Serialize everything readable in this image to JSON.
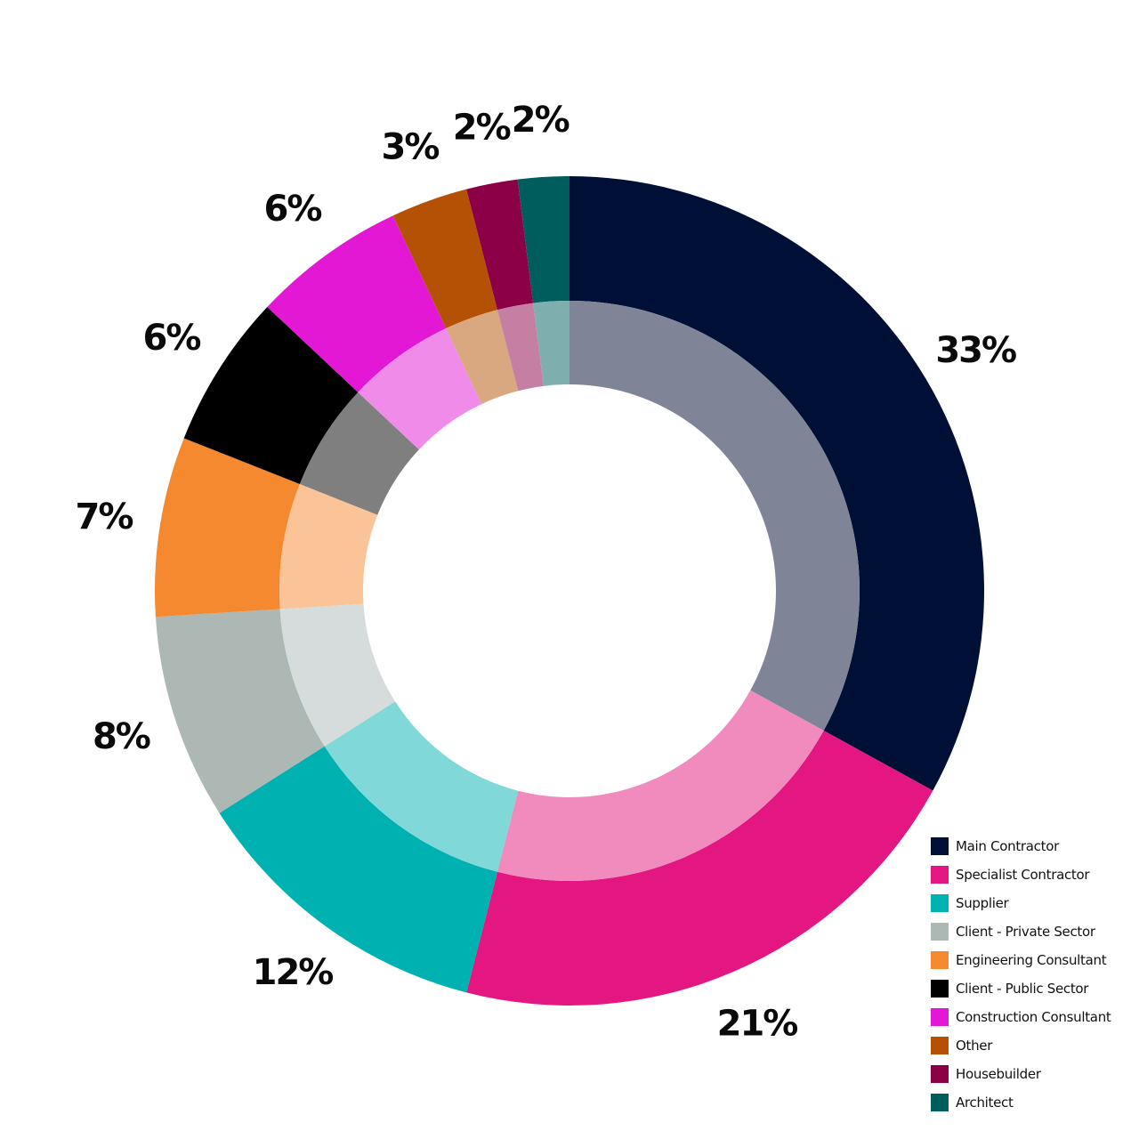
{
  "chart_data": {
    "type": "pie",
    "style": "nested donut",
    "series": [
      {
        "name": "Main Contractor",
        "value": 33,
        "color": "#000f35",
        "inner_color": "#7f8497"
      },
      {
        "name": "Specialist Contractor",
        "value": 21,
        "color": "#e41681",
        "inner_color": "#f18abd"
      },
      {
        "name": "Supplier",
        "value": 12,
        "color": "#00b1b2",
        "inner_color": "#80d8d8"
      },
      {
        "name": "Client - Private Sector",
        "value": 8,
        "color": "#adb8b5",
        "inner_color": "#d6dcdb"
      },
      {
        "name": "Engineering Consultant",
        "value": 7,
        "color": "#f48930",
        "inner_color": "#fac498"
      },
      {
        "name": "Client - Public Sector",
        "value": 6,
        "color": "#000000",
        "inner_color": "#7f7f7f"
      },
      {
        "name": "Construction Consultant",
        "value": 6,
        "color": "#e318d4",
        "inner_color": "#f18be9"
      },
      {
        "name": "Other",
        "value": 3,
        "color": "#b45104",
        "inner_color": "#d9a880"
      },
      {
        "name": "Housebuilder",
        "value": 2,
        "color": "#8b0047",
        "inner_color": "#c57fa3"
      },
      {
        "name": "Architect",
        "value": 2,
        "color": "#005d5d",
        "inner_color": "#7faeae"
      }
    ],
    "labels": [
      "33%",
      "21%",
      "12%",
      "8%",
      "7%",
      "6%",
      "6%",
      "3%",
      "2%",
      "2%"
    ],
    "legend_position": "bottom-right"
  }
}
